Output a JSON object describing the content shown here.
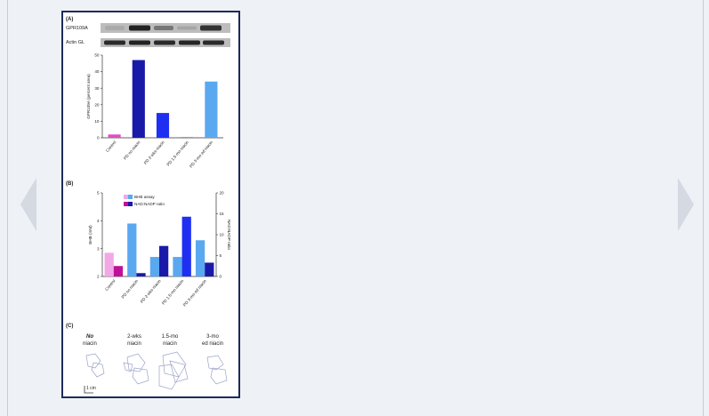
{
  "viewer": {
    "prev_icon": "chevron-left-icon",
    "next_icon": "chevron-right-icon",
    "arrow_color": "#d4d9e2"
  },
  "figure": {
    "panel_a": {
      "label": "(A)",
      "blot_labels": [
        "GPR109A",
        "Actin GL"
      ]
    },
    "panel_b": {
      "label": "(B)"
    },
    "panel_c": {
      "label": "(C)",
      "columns": [
        [
          "No",
          "niacin"
        ],
        [
          "2-wks",
          "niacin"
        ],
        [
          "1.5-mo",
          "niacin"
        ],
        [
          "3-mo",
          "ed niacin"
        ]
      ],
      "scale_label": "1 cm"
    }
  },
  "chart_data": [
    {
      "type": "bar",
      "panel": "A",
      "categories": [
        "Control",
        "PD no niacin",
        "PD 2-wks niacin",
        "PD 1.5-mo niacin",
        "PD 3-mo ed niacin"
      ],
      "values": [
        2,
        47,
        15,
        0.5,
        34
      ],
      "colors": [
        "#e04fc0",
        "#1a1aa8",
        "#1f2ff2",
        "#8c8cf0",
        "#5aa8f0"
      ],
      "ylabel": "GPR109A (percent area)",
      "ylim": [
        0,
        50
      ],
      "yticks": [
        0,
        10,
        20,
        30,
        40,
        50
      ]
    },
    {
      "type": "bar",
      "panel": "B",
      "categories": [
        "Control",
        "PD no niacin",
        "PD 2-wks niacin",
        "PD 1.5-mo niacin",
        "PD 3-mo ed niacin"
      ],
      "series": [
        {
          "name": "BHB assay",
          "axis": "left",
          "values": [
            2.85,
            3.9,
            2.7,
            2.7,
            3.3
          ],
          "colors": [
            "#f2a8e6",
            "#5aa8f0",
            "#5aa8f0",
            "#5aa8f0",
            "#5aa8f0"
          ]
        },
        {
          "name": "NAD:NADP ratio",
          "axis": "right",
          "values": [
            2.5,
            0.8,
            7.3,
            14.3,
            3.3
          ],
          "colors": [
            "#c0109a",
            "#1a1aa8",
            "#1a1aa8",
            "#1f2ff2",
            "#1a1aa8"
          ]
        }
      ],
      "ylabel_left": "BHB (mM)",
      "ylim_left": [
        2,
        5
      ],
      "yticks_left": [
        2,
        3,
        4,
        5
      ],
      "ylabel_right": "NAD:NADP ratio",
      "ylim_right": [
        0,
        20
      ],
      "yticks_right": [
        0,
        5,
        10,
        15,
        20
      ],
      "legend": [
        "BHB assay",
        "NAD:NADP ratio"
      ],
      "legend_position": "top"
    }
  ]
}
